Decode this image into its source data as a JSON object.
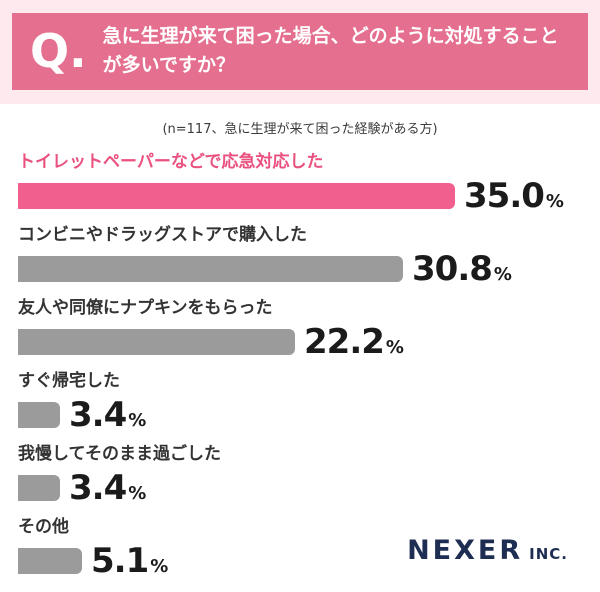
{
  "header": {
    "q_label": "Q.",
    "question": "急に生理が来て困った場合、どのように対処することが多いですか？"
  },
  "subtitle": "(n=117、急に生理が来て困った経験がある方)",
  "chart_data": {
    "type": "bar",
    "orientation": "horizontal",
    "title": "急に生理が来て困った場合、どのように対処することが多いですか？",
    "sample_note": "n=117、急に生理が来て困った経験がある方",
    "categories": [
      "トイレットペーパーなどで応急対応した",
      "コンビニやドラッグストアで購入した",
      "友人や同僚にナプキンをもらった",
      "すぐ帰宅した",
      "我慢してそのまま過ごした",
      "その他"
    ],
    "values": [
      35.0,
      30.8,
      22.2,
      3.4,
      3.4,
      5.1
    ],
    "value_labels": [
      "35.0",
      "30.8",
      "22.2",
      "3.4",
      "3.4",
      "5.1"
    ],
    "unit": "%",
    "highlight_index": 0,
    "xlim": [
      0,
      35
    ],
    "legend": "none",
    "grid": false
  },
  "footer": {
    "brand": "NEXER",
    "brand_suffix": "INC."
  },
  "colors": {
    "background_pink": "#fde9ee",
    "banner_pink": "#e56f8e",
    "content_bg": "#ffffff",
    "highlight_bar": "#f05f8e",
    "default_bar": "#9b9b9b",
    "highlight_label": "#e9517e",
    "brand_navy": "#1e2d52"
  }
}
